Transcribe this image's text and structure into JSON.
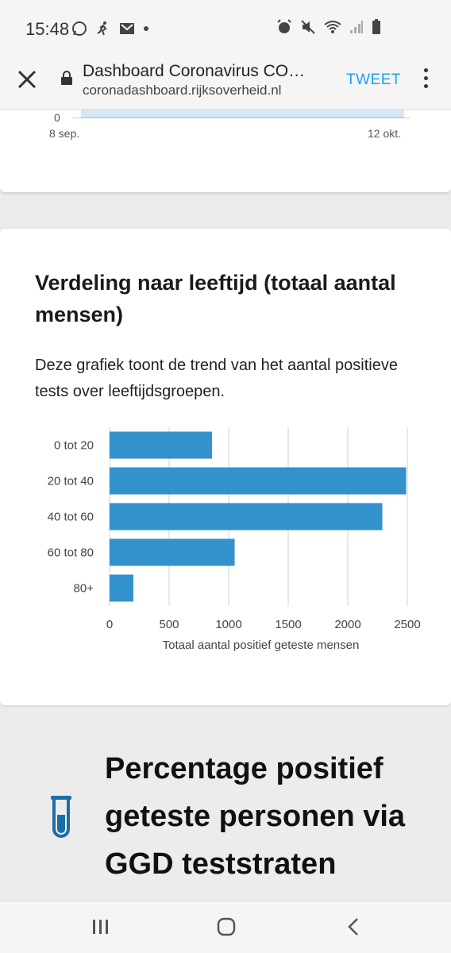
{
  "status_bar": {
    "time": "15:48",
    "left_icons": [
      "whatsapp-icon",
      "runner-icon",
      "gmail-icon",
      "dot-icon"
    ],
    "right_icons": [
      "alarm-icon",
      "mute-icon",
      "wifi-icon",
      "signal-icon",
      "battery-icon"
    ]
  },
  "browser": {
    "title": "Dashboard Coronavirus CO…",
    "url": "coronadashboard.rijksoverheid.nl",
    "tweet_label": "TWEET"
  },
  "prev_chart": {
    "y_zero_label": "0",
    "x_start_label": "8 sep.",
    "x_end_label": "12 okt."
  },
  "age_card": {
    "title": "Verdeling naar leeftijd (totaal aantal mensen)",
    "description": "Deze grafiek toont de trend van het aantal positieve tests over leeftijdsgroepen."
  },
  "chart_data": {
    "type": "bar",
    "orientation": "horizontal",
    "categories": [
      "0 tot 20",
      "20 tot 40",
      "40 tot 60",
      "60 tot 80",
      "80+"
    ],
    "values": [
      860,
      2490,
      2290,
      1050,
      200
    ],
    "xlabel": "Totaal aantal positief geteste mensen",
    "xlim": [
      0,
      2500
    ],
    "ticks": [
      "0",
      "500",
      "1000",
      "1500",
      "2000",
      "2500"
    ],
    "grid": true,
    "bar_color": "#3391cc"
  },
  "next_section": {
    "title": "Percentage positief geteste personen via GGD teststraten",
    "icon": "test-tube-icon",
    "icon_color": "#1b6fa8"
  },
  "nav_bar": {
    "recent_icon": "recent-apps-icon",
    "home_icon": "home-icon",
    "back_icon": "back-icon"
  }
}
